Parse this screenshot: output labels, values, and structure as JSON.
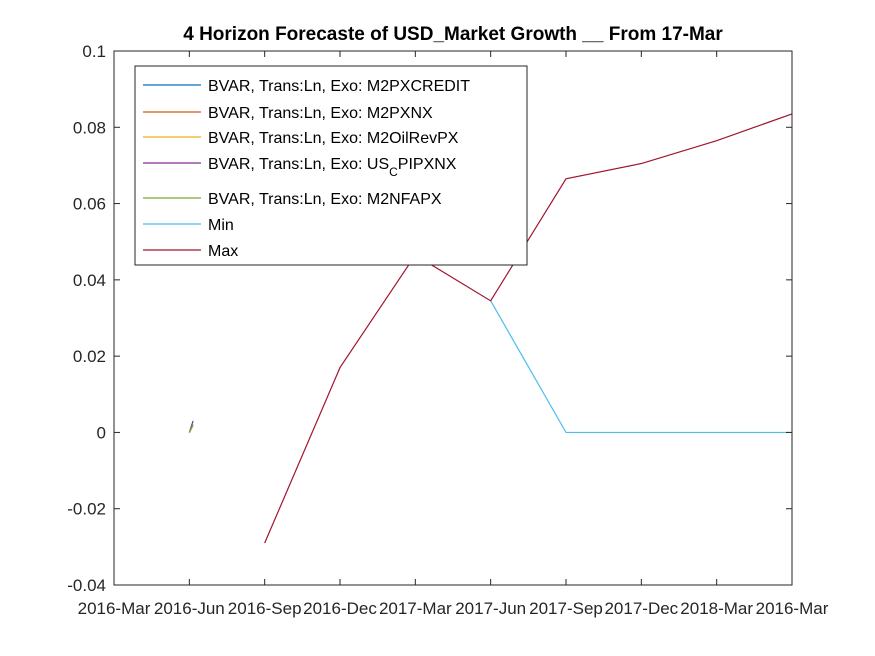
{
  "chart_data": {
    "type": "line",
    "title": "4 Horizon Forecaste of USD_Market Growth __ From 17-Mar",
    "xlabel": "",
    "ylabel": "",
    "categories": [
      "2016-Mar",
      "2016-Jun",
      "2016-Sep",
      "2016-Dec",
      "2017-Mar",
      "2017-Jun",
      "2017-Sep",
      "2017-Dec",
      "2018-Mar",
      "2016-Mar"
    ],
    "ylim": [
      -0.04,
      0.1
    ],
    "yticks": [
      -0.04,
      -0.02,
      0,
      0.02,
      0.04,
      0.06,
      0.08,
      0.1
    ],
    "ytick_labels": [
      "-0.04",
      "-0.02",
      "0",
      "0.02",
      "0.04",
      "0.06",
      "0.08",
      "0.1"
    ],
    "grid": false,
    "legend_position": "top-left",
    "series": [
      {
        "name": "BVAR, Trans:Ln, Exo: M2PXCREDIT",
        "name_main": "BVAR, Trans:Ln, Exo: M2PXCREDIT",
        "name_sub": "",
        "name_tail": "",
        "color": "#0072BD",
        "points": [
          [
            1.0,
            0.0
          ],
          [
            1.05,
            0.002
          ]
        ]
      },
      {
        "name": "BVAR, Trans:Ln, Exo: M2PXNX",
        "name_main": "BVAR, Trans:Ln, Exo: M2PXNX",
        "name_sub": "",
        "name_tail": "",
        "color": "#D95319",
        "points": [
          [
            1.0,
            0.0
          ],
          [
            1.05,
            0.002
          ]
        ]
      },
      {
        "name": "BVAR, Trans:Ln, Exo: M2OilRevPX",
        "name_main": "BVAR, Trans:Ln, Exo: M2OilRevPX",
        "name_sub": "",
        "name_tail": "",
        "color": "#EDB120",
        "points": [
          [
            1.0,
            0.0
          ],
          [
            1.05,
            0.002
          ]
        ]
      },
      {
        "name": "BVAR, Trans:Ln, Exo: US_CPIPXNX",
        "name_main": "BVAR, Trans:Ln, Exo: US",
        "name_sub": "C",
        "name_tail": "PIPXNX",
        "color": "#7E2F8E",
        "points": [
          [
            1.0,
            0.0
          ],
          [
            1.05,
            0.003
          ]
        ]
      },
      {
        "name": "BVAR, Trans:Ln, Exo: M2NFAPX",
        "name_main": "BVAR, Trans:Ln, Exo: M2NFAPX",
        "name_sub": "",
        "name_tail": "",
        "color": "#77AC30",
        "points": [
          [
            1.0,
            0.0
          ],
          [
            1.05,
            0.002
          ]
        ]
      },
      {
        "name": "Min",
        "name_main": "Min",
        "name_sub": "",
        "name_tail": "",
        "color": "#4DBEEE",
        "points": [
          [
            5,
            0.0345
          ],
          [
            6,
            0.0
          ],
          [
            7,
            0.0
          ],
          [
            8,
            0.0
          ],
          [
            9,
            0.0
          ]
        ]
      },
      {
        "name": "Max",
        "name_main": "Max",
        "name_sub": "",
        "name_tail": "",
        "color": "#A2142F",
        "points": [
          [
            2,
            -0.029
          ],
          [
            3,
            0.017
          ],
          [
            4,
            0.0465
          ],
          [
            5,
            0.0345
          ],
          [
            6,
            0.0665
          ],
          [
            7,
            0.0705
          ],
          [
            8,
            0.0765
          ],
          [
            9,
            0.0835
          ]
        ]
      }
    ]
  }
}
